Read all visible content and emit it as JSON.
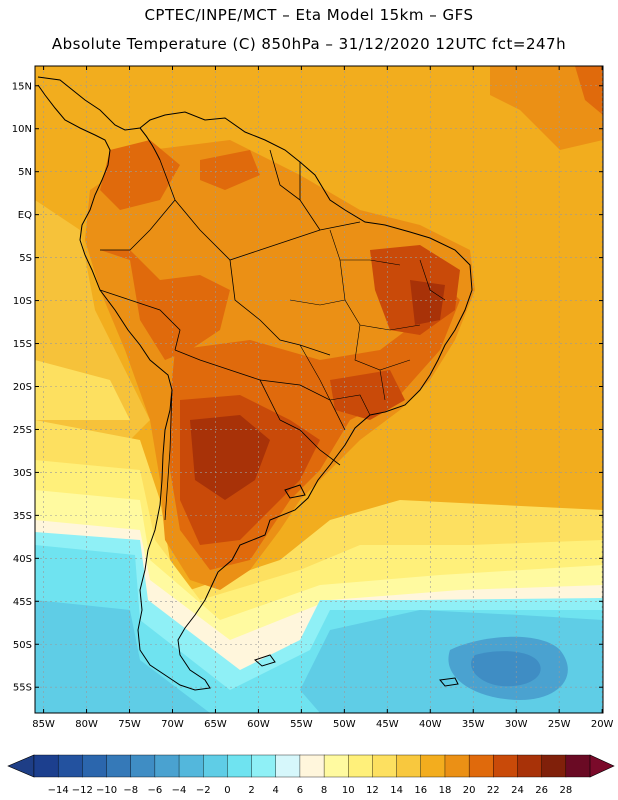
{
  "header": {
    "line1": "CPTEC/INPE/MCT –   Eta Model 15km – GFS",
    "line2": "Absolute Temperature (C) 850hPa – 31/12/2020 12UTC fct=247h"
  },
  "axes": {
    "lat_labels": [
      "15N",
      "10N",
      "5N",
      "EQ",
      "5S",
      "10S",
      "15S",
      "20S",
      "25S",
      "30S",
      "35S",
      "40S",
      "45S",
      "50S",
      "55S"
    ],
    "lon_labels": [
      "85W",
      "80W",
      "75W",
      "70W",
      "65W",
      "60W",
      "55W",
      "50W",
      "45W",
      "40W",
      "35W",
      "30W",
      "25W",
      "20W"
    ]
  },
  "colorbar": {
    "labels": [
      "-14",
      "-12",
      "-10",
      "-8",
      "-6",
      "-4",
      "-2",
      "0",
      "2",
      "4",
      "6",
      "8",
      "10",
      "12",
      "14",
      "16",
      "18",
      "20",
      "22",
      "24",
      "26",
      "28"
    ],
    "colors": [
      "#1c3f8e",
      "#23529f",
      "#2b66ad",
      "#3579b8",
      "#3f8dc4",
      "#4aa2d0",
      "#53b7dc",
      "#5fcde6",
      "#6fe3f0",
      "#8ff0f6",
      "#d6f7fb",
      "#fff6dc",
      "#fffaa0",
      "#fff07a",
      "#fde060",
      "#f8c83e",
      "#f3ad1e",
      "#eb9015",
      "#e06a0c",
      "#c94a09",
      "#a83208",
      "#80200a",
      "#6a0a24"
    ],
    "under_color": "#1e3e86",
    "over_color": "#7a0a2a"
  },
  "field_colors": {
    "base": "#f2ad1e",
    "warm": "#eb9015",
    "hot": "#e06a0c",
    "hotter": "#c94a09",
    "hottest": "#a83208",
    "mild": "#f6c23a",
    "cool1": "#fde060",
    "cool2": "#fff07a",
    "cool3": "#fffaa0",
    "cool4": "#fff6dc",
    "cyan1": "#8ff0f6",
    "cyan2": "#6fe3f0",
    "cyan3": "#5fcde6",
    "blue1": "#4aa2d0",
    "blue2": "#3f8dc4"
  }
}
